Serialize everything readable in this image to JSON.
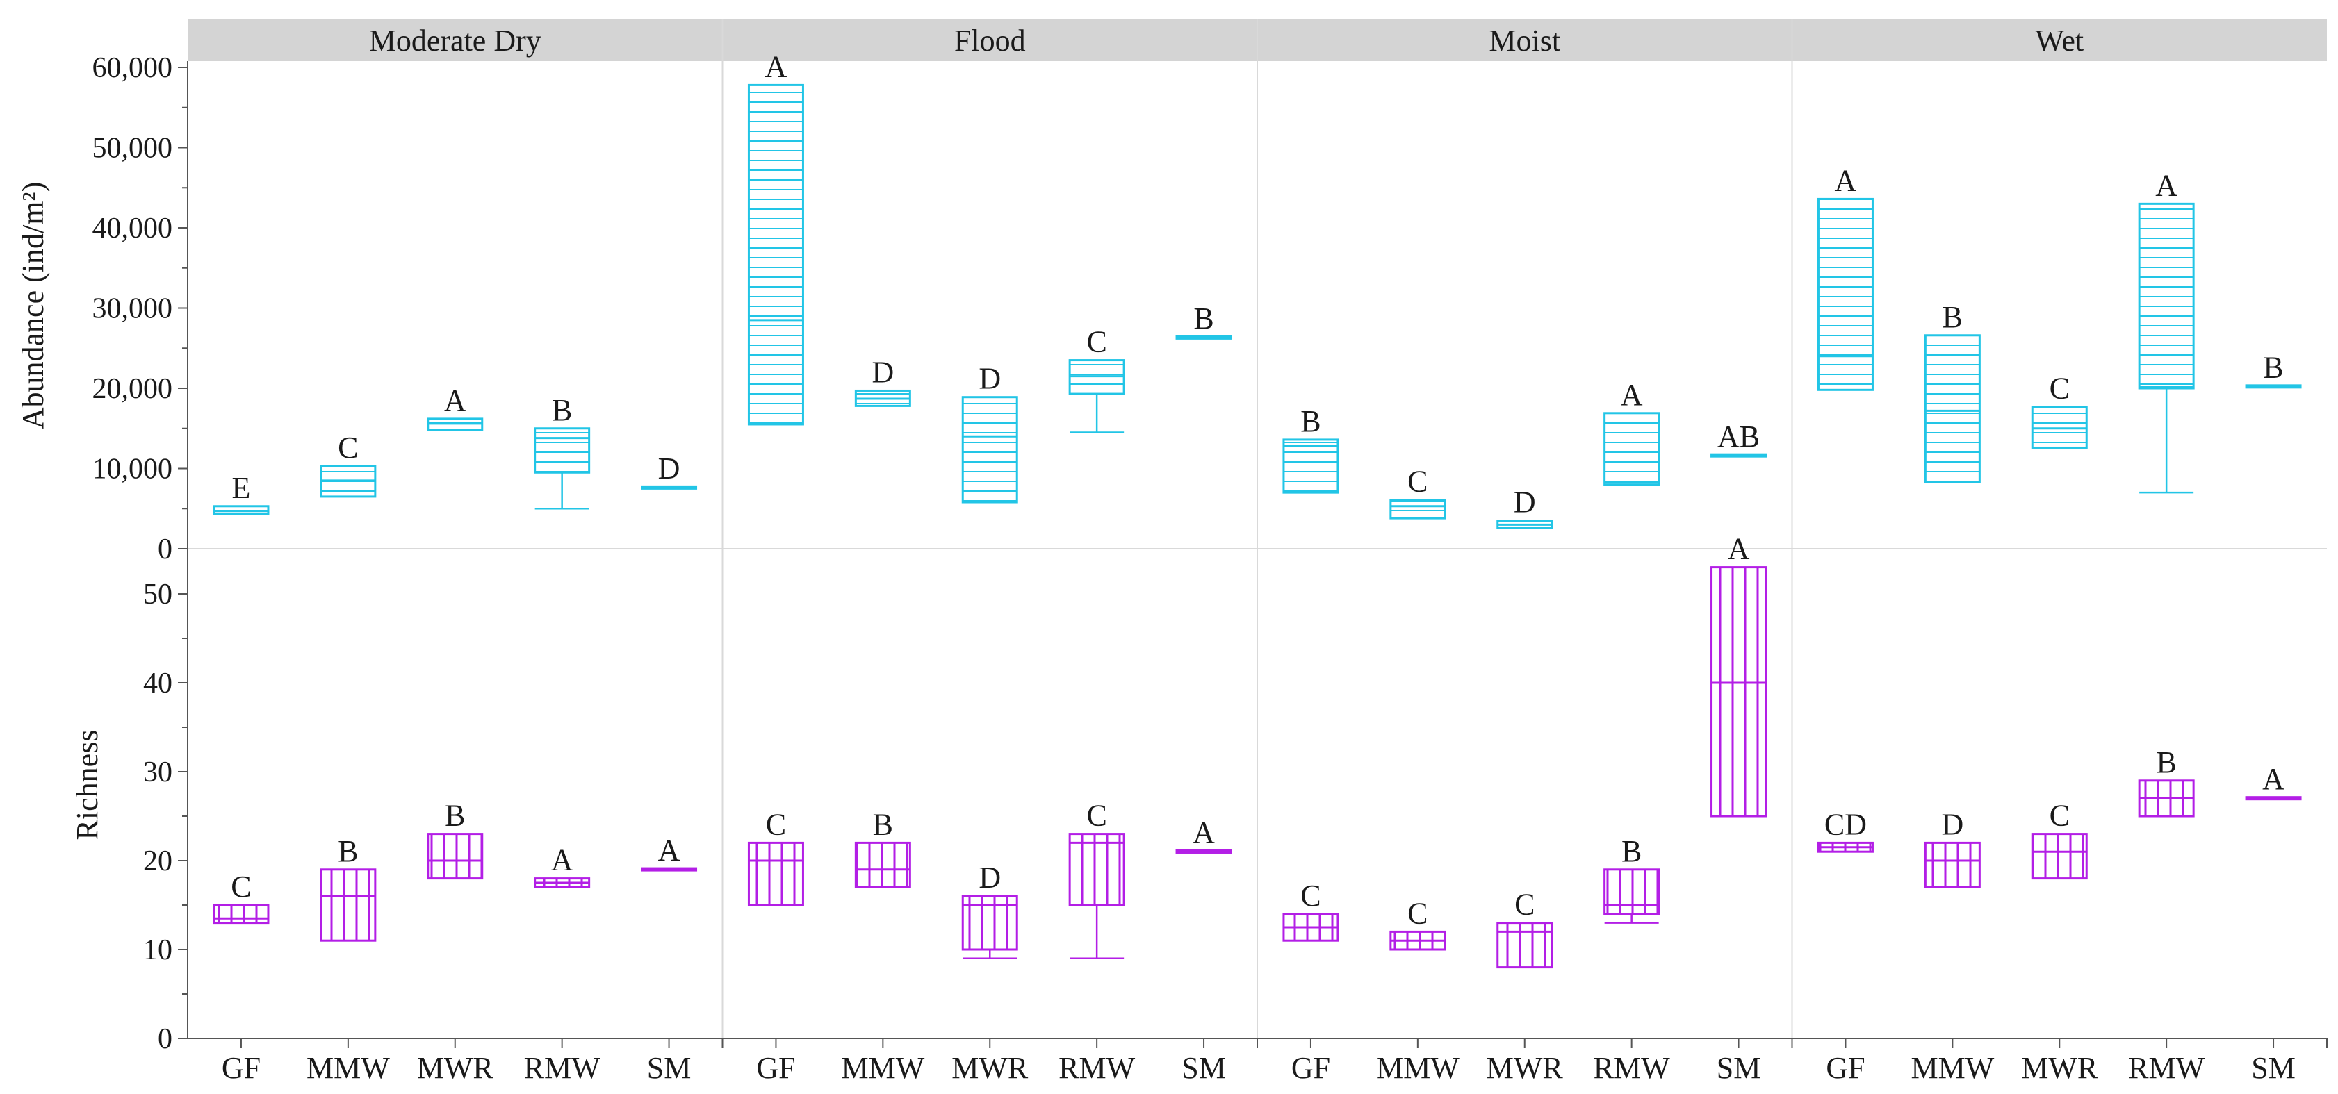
{
  "chart_data": {
    "type": "box",
    "facets": [
      "Moderate Dry",
      "Flood",
      "Moist",
      "Wet"
    ],
    "categories": [
      "GF",
      "MMW",
      "MWR",
      "RMW",
      "SM"
    ],
    "colors": {
      "abundance": "#22c5e6",
      "richness": "#b31ee6",
      "strip": "#d4d4d4",
      "grid": "#d9d9d9"
    },
    "panels": [
      {
        "id": "abundance",
        "ylabel": "Abundance (ind/m²)",
        "ylim": [
          0,
          60000
        ],
        "ticks": [
          0,
          10000,
          20000,
          30000,
          40000,
          50000,
          60000
        ],
        "tick_labels": [
          "0",
          "10,000",
          "20,000",
          "30,000",
          "40,000",
          "50,000",
          "60,000"
        ],
        "hatch": "horizontal",
        "groups": [
          [
            {
              "q1": 4300,
              "median": 4700,
              "q3": 5300,
              "whisker_low": null,
              "whisker_high": null,
              "letter": "E"
            },
            {
              "q1": 6500,
              "median": 8500,
              "q3": 10300,
              "whisker_low": null,
              "whisker_high": null,
              "letter": "C"
            },
            {
              "q1": 14800,
              "median": 15600,
              "q3": 16200,
              "whisker_low": null,
              "whisker_high": null,
              "letter": "A"
            },
            {
              "q1": 9500,
              "median": 13800,
              "q3": 15000,
              "whisker_low": 5000,
              "whisker_high": null,
              "letter": "B"
            },
            {
              "q1": 7500,
              "median": 7600,
              "q3": 7700,
              "whisker_low": null,
              "whisker_high": null,
              "letter": "D"
            }
          ],
          [
            {
              "q1": 15500,
              "median": 28500,
              "q3": 57800,
              "whisker_low": null,
              "whisker_high": null,
              "letter": "A"
            },
            {
              "q1": 17800,
              "median": 18700,
              "q3": 19700,
              "whisker_low": null,
              "whisker_high": null,
              "letter": "D"
            },
            {
              "q1": 5800,
              "median": 14000,
              "q3": 18900,
              "whisker_low": null,
              "whisker_high": null,
              "letter": "D"
            },
            {
              "q1": 19300,
              "median": 21500,
              "q3": 23500,
              "whisker_low": 14500,
              "whisker_high": null,
              "letter": "C"
            },
            {
              "q1": 26200,
              "median": 26300,
              "q3": 26400,
              "whisker_low": null,
              "whisker_high": null,
              "letter": "B"
            }
          ],
          [
            {
              "q1": 7000,
              "median": 12800,
              "q3": 13600,
              "whisker_low": null,
              "whisker_high": null,
              "letter": "B"
            },
            {
              "q1": 3800,
              "median": 5300,
              "q3": 6100,
              "whisker_low": null,
              "whisker_high": null,
              "letter": "C"
            },
            {
              "q1": 2600,
              "median": 3000,
              "q3": 3500,
              "whisker_low": null,
              "whisker_high": null,
              "letter": "D"
            },
            {
              "q1": 8000,
              "median": 8300,
              "q3": 16900,
              "whisker_low": null,
              "whisker_high": null,
              "letter": "A"
            },
            {
              "q1": 11500,
              "median": 11600,
              "q3": 11700,
              "whisker_low": null,
              "whisker_high": null,
              "letter": "AB"
            }
          ],
          [
            {
              "q1": 19800,
              "median": 24000,
              "q3": 43600,
              "whisker_low": null,
              "whisker_high": null,
              "letter": "A"
            },
            {
              "q1": 8300,
              "median": 17200,
              "q3": 26600,
              "whisker_low": null,
              "whisker_high": null,
              "letter": "B"
            },
            {
              "q1": 12600,
              "median": 15000,
              "q3": 17700,
              "whisker_low": null,
              "whisker_high": null,
              "letter": "C"
            },
            {
              "q1": 20000,
              "median": 20200,
              "q3": 43000,
              "whisker_low": 7000,
              "whisker_high": null,
              "letter": "A"
            },
            {
              "q1": 20100,
              "median": 20200,
              "q3": 20300,
              "whisker_low": null,
              "whisker_high": null,
              "letter": "B"
            }
          ]
        ]
      },
      {
        "id": "richness",
        "ylabel": "Richness",
        "ylim": [
          0,
          55
        ],
        "ticks": [
          0,
          10,
          20,
          30,
          40,
          50
        ],
        "tick_labels": [
          "0",
          "10",
          "20",
          "30",
          "40",
          "50"
        ],
        "hatch": "vertical",
        "groups": [
          [
            {
              "q1": 13,
              "median": 13.5,
              "q3": 15,
              "whisker_low": null,
              "whisker_high": null,
              "letter": "C"
            },
            {
              "q1": 11,
              "median": 16,
              "q3": 19,
              "whisker_low": null,
              "whisker_high": null,
              "letter": "B"
            },
            {
              "q1": 18,
              "median": 20,
              "q3": 23,
              "whisker_low": null,
              "whisker_high": null,
              "letter": "B"
            },
            {
              "q1": 17,
              "median": 17.5,
              "q3": 18,
              "whisker_low": null,
              "whisker_high": null,
              "letter": "A"
            },
            {
              "q1": 18.9,
              "median": 19,
              "q3": 19.1,
              "whisker_low": null,
              "whisker_high": null,
              "letter": "A"
            }
          ],
          [
            {
              "q1": 15,
              "median": 20,
              "q3": 22,
              "whisker_low": null,
              "whisker_high": null,
              "letter": "C"
            },
            {
              "q1": 17,
              "median": 19,
              "q3": 22,
              "whisker_low": null,
              "whisker_high": null,
              "letter": "B"
            },
            {
              "q1": 10,
              "median": 15,
              "q3": 16,
              "whisker_low": 9,
              "whisker_high": null,
              "letter": "D"
            },
            {
              "q1": 15,
              "median": 22,
              "q3": 23,
              "whisker_low": 9,
              "whisker_high": null,
              "letter": "C"
            },
            {
              "q1": 20.9,
              "median": 21,
              "q3": 21.1,
              "whisker_low": null,
              "whisker_high": null,
              "letter": "A"
            }
          ],
          [
            {
              "q1": 11,
              "median": 12.5,
              "q3": 14,
              "whisker_low": null,
              "whisker_high": null,
              "letter": "C"
            },
            {
              "q1": 10,
              "median": 11,
              "q3": 12,
              "whisker_low": null,
              "whisker_high": null,
              "letter": "C"
            },
            {
              "q1": 8,
              "median": 12,
              "q3": 13,
              "whisker_low": null,
              "whisker_high": null,
              "letter": "C"
            },
            {
              "q1": 14,
              "median": 15,
              "q3": 19,
              "whisker_low": 13,
              "whisker_high": null,
              "letter": "B"
            },
            {
              "q1": 25,
              "median": 40,
              "q3": 53,
              "whisker_low": null,
              "whisker_high": null,
              "letter": "A"
            }
          ],
          [
            {
              "q1": 21,
              "median": 21.5,
              "q3": 22,
              "whisker_low": null,
              "whisker_high": null,
              "letter": "CD"
            },
            {
              "q1": 17,
              "median": 20,
              "q3": 22,
              "whisker_low": null,
              "whisker_high": null,
              "letter": "D"
            },
            {
              "q1": 18,
              "median": 21,
              "q3": 23,
              "whisker_low": null,
              "whisker_high": null,
              "letter": "C"
            },
            {
              "q1": 25,
              "median": 27,
              "q3": 29,
              "whisker_low": null,
              "whisker_high": null,
              "letter": "B"
            },
            {
              "q1": 26.9,
              "median": 27,
              "q3": 27.1,
              "whisker_low": null,
              "whisker_high": null,
              "letter": "A"
            }
          ]
        ]
      }
    ]
  }
}
